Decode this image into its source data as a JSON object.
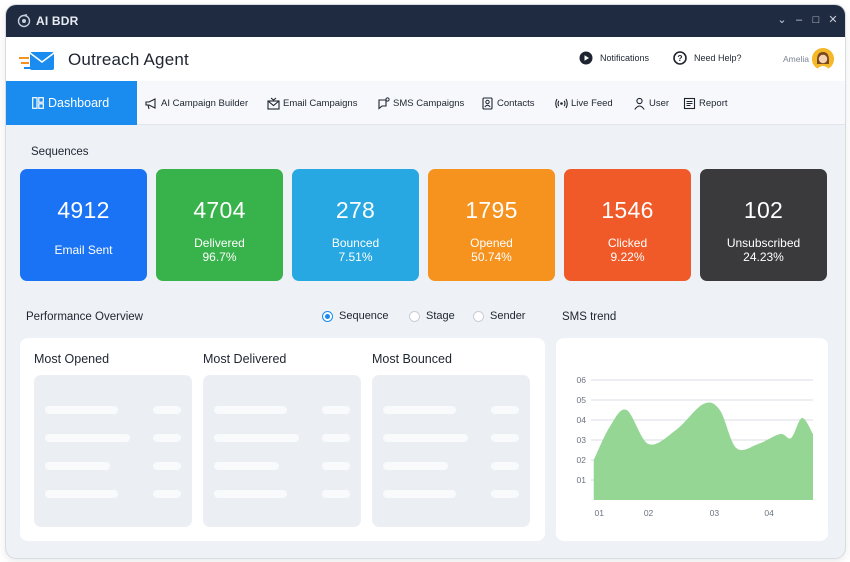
{
  "window": {
    "title": "AI BDR",
    "controls": [
      "⌄",
      "–",
      "□",
      "✕"
    ]
  },
  "header": {
    "title": "Outreach Agent",
    "notifications_label": "Notifications",
    "help_label": "Need Help?",
    "user_name": "Amelia"
  },
  "nav": {
    "dashboard": "Dashboard",
    "campaign_builder": "AI Campaign Builder",
    "email_campaigns": "Email Campaigns",
    "sms_campaigns": "SMS Campaigns",
    "contacts": "Contacts",
    "live_feed": "Live Feed",
    "user": "User",
    "report": "Report"
  },
  "sequences": {
    "title": "Sequences",
    "cards": [
      {
        "value": "4912",
        "label": "Email Sent",
        "percent": "",
        "color": "#1a73f5"
      },
      {
        "value": "4704",
        "label": "Delivered",
        "percent": "96.7%",
        "color": "#38b24a"
      },
      {
        "value": "278",
        "label": "Bounced",
        "percent": "7.51%",
        "color": "#27a8e2"
      },
      {
        "value": "1795",
        "label": "Opened",
        "percent": "50.74%",
        "color": "#f6921e"
      },
      {
        "value": "1546",
        "label": "Clicked",
        "percent": "9.22%",
        "color": "#f05a28"
      },
      {
        "value": "102",
        "label": "Unsubscribed",
        "percent": "24.23%",
        "color": "#3a3a3c"
      }
    ]
  },
  "performance": {
    "title": "Performance Overview",
    "options": [
      "Sequence",
      "Stage",
      "Sender"
    ],
    "selected": "Sequence",
    "columns": [
      "Most Opened",
      "Most Delivered",
      "Most Bounced"
    ]
  },
  "sms_trend": {
    "title": "SMS trend",
    "y_ticks": [
      "06",
      "05",
      "04",
      "03",
      "02",
      "01"
    ],
    "x_ticks": [
      "01",
      "02",
      "03",
      "04"
    ]
  },
  "chart_data": {
    "type": "area",
    "title": "SMS trend",
    "ylabel": "",
    "xlabel": "",
    "ylim": [
      0,
      0.6
    ],
    "xlim": [
      0.95,
      5.0
    ],
    "x": [
      1.0,
      1.3,
      1.6,
      2.0,
      2.5,
      3.0,
      3.3,
      3.6,
      4.0,
      4.4,
      4.6,
      4.8,
      5.0
    ],
    "values": [
      0.2,
      0.37,
      0.45,
      0.28,
      0.35,
      0.48,
      0.45,
      0.26,
      0.28,
      0.33,
      0.31,
      0.41,
      0.33
    ],
    "series": [
      {
        "name": "",
        "color": "#8fd48f"
      }
    ],
    "grid": true
  }
}
